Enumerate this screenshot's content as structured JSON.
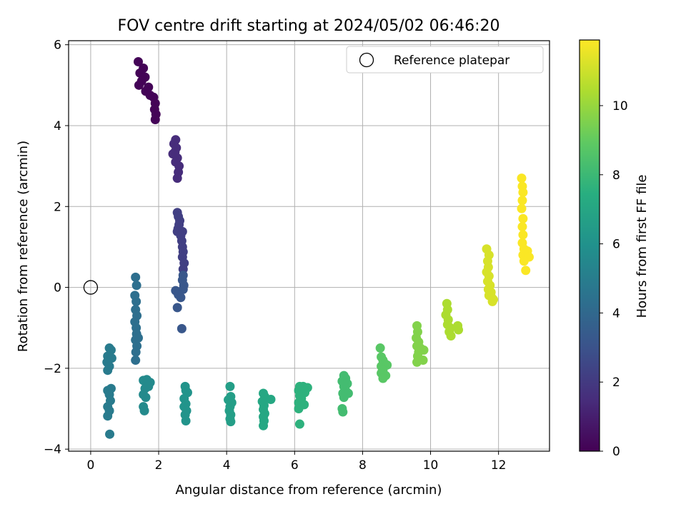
{
  "chart_data": {
    "type": "scatter",
    "title": "FOV centre drift starting at 2024/05/02 06:46:20",
    "xlabel": "Angular distance from reference (arcmin)",
    "ylabel": "Rotation from reference (arcmin)",
    "xlim": [
      -0.65,
      13.5
    ],
    "ylim": [
      -4.05,
      6.1
    ],
    "xticks": [
      0,
      2,
      4,
      6,
      8,
      10,
      12
    ],
    "yticks": [
      -4,
      -2,
      0,
      2,
      4,
      6
    ],
    "grid": true,
    "legend": {
      "position": "top-right",
      "entries": [
        "Reference platepar"
      ]
    },
    "reference_point": {
      "x": 0,
      "y": 0,
      "label": "Reference platepar"
    },
    "colorbar": {
      "label": "Hours from first FF file",
      "range": [
        0,
        11.9
      ],
      "ticks": [
        0,
        2,
        4,
        6,
        8,
        10
      ],
      "colormap": "viridis"
    },
    "series": [
      {
        "hours": 0.1,
        "points": [
          [
            1.4,
            5.58
          ],
          [
            1.55,
            5.42
          ],
          [
            1.45,
            5.3
          ],
          [
            1.6,
            5.2
          ],
          [
            1.5,
            5.1
          ],
          [
            1.42,
            5.0
          ],
          [
            1.7,
            4.95
          ],
          [
            1.62,
            4.85
          ],
          [
            1.75,
            4.75
          ],
          [
            1.85,
            4.7
          ],
          [
            1.9,
            4.55
          ],
          [
            1.88,
            4.4
          ],
          [
            1.92,
            4.28
          ],
          [
            1.9,
            4.15
          ]
        ]
      },
      {
        "hours": 1.5,
        "points": [
          [
            2.5,
            3.65
          ],
          [
            2.45,
            3.55
          ],
          [
            2.52,
            3.45
          ],
          [
            2.48,
            3.35
          ],
          [
            2.42,
            3.3
          ],
          [
            2.55,
            3.2
          ],
          [
            2.5,
            3.1
          ],
          [
            2.6,
            3.0
          ],
          [
            2.58,
            2.85
          ],
          [
            2.55,
            2.7
          ]
        ]
      },
      {
        "hours": 2.2,
        "points": [
          [
            2.55,
            1.85
          ],
          [
            2.58,
            1.75
          ],
          [
            2.62,
            1.65
          ],
          [
            2.6,
            1.55
          ],
          [
            2.57,
            1.45
          ],
          [
            2.55,
            1.38
          ],
          [
            2.7,
            1.38
          ],
          [
            2.65,
            1.28
          ],
          [
            2.68,
            1.15
          ],
          [
            2.7,
            1.0
          ],
          [
            2.72,
            0.88
          ],
          [
            2.7,
            0.75
          ],
          [
            2.75,
            0.6
          ],
          [
            2.72,
            0.45
          ]
        ]
      },
      {
        "hours": 3.2,
        "points": [
          [
            2.72,
            0.3
          ],
          [
            2.7,
            0.18
          ],
          [
            2.74,
            0.05
          ],
          [
            2.72,
            -0.05
          ],
          [
            2.5,
            -0.08
          ],
          [
            2.58,
            -0.18
          ],
          [
            2.65,
            -0.25
          ],
          [
            2.55,
            -0.5
          ],
          [
            2.68,
            -1.02
          ]
        ]
      },
      {
        "hours": 4.3,
        "points": [
          [
            1.32,
            0.25
          ],
          [
            1.35,
            0.05
          ],
          [
            1.3,
            -0.2
          ],
          [
            1.34,
            -0.35
          ],
          [
            1.32,
            -0.55
          ],
          [
            1.36,
            -0.7
          ],
          [
            1.3,
            -0.85
          ],
          [
            1.34,
            -1.0
          ],
          [
            1.35,
            -1.15
          ],
          [
            1.32,
            -1.3
          ],
          [
            1.36,
            -1.45
          ],
          [
            1.33,
            -1.6
          ],
          [
            1.32,
            -1.8
          ],
          [
            1.4,
            -1.25
          ]
        ]
      },
      {
        "hours": 4.9,
        "points": [
          [
            0.55,
            -1.5
          ],
          [
            0.6,
            -1.55
          ],
          [
            0.5,
            -1.7
          ],
          [
            0.62,
            -1.75
          ],
          [
            0.48,
            -1.85
          ],
          [
            0.55,
            -1.95
          ],
          [
            0.5,
            -2.05
          ],
          [
            0.6,
            -2.5
          ],
          [
            0.5,
            -2.55
          ],
          [
            0.55,
            -2.65
          ],
          [
            0.58,
            -2.8
          ],
          [
            0.5,
            -2.95
          ],
          [
            0.55,
            -3.05
          ],
          [
            0.5,
            -3.18
          ],
          [
            0.56,
            -3.63
          ]
        ]
      },
      {
        "hours": 5.6,
        "points": [
          [
            1.55,
            -2.3
          ],
          [
            1.65,
            -2.28
          ],
          [
            1.75,
            -2.35
          ],
          [
            1.7,
            -2.45
          ],
          [
            1.6,
            -2.5
          ],
          [
            1.55,
            -2.65
          ],
          [
            1.62,
            -2.72
          ],
          [
            1.55,
            -2.95
          ],
          [
            1.58,
            -3.05
          ]
        ]
      },
      {
        "hours": 6.1,
        "points": [
          [
            2.78,
            -2.45
          ],
          [
            2.8,
            -2.55
          ],
          [
            2.85,
            -2.6
          ],
          [
            2.75,
            -2.75
          ],
          [
            2.8,
            -2.88
          ],
          [
            2.75,
            -2.95
          ],
          [
            2.82,
            -3.05
          ],
          [
            2.78,
            -3.15
          ],
          [
            2.8,
            -3.3
          ]
        ]
      },
      {
        "hours": 6.6,
        "points": [
          [
            4.1,
            -2.45
          ],
          [
            4.12,
            -2.7
          ],
          [
            4.05,
            -2.78
          ],
          [
            4.15,
            -2.85
          ],
          [
            4.1,
            -2.95
          ],
          [
            4.08,
            -3.05
          ],
          [
            4.12,
            -3.15
          ],
          [
            4.1,
            -3.25
          ],
          [
            4.12,
            -3.32
          ]
        ]
      },
      {
        "hours": 7.1,
        "points": [
          [
            5.08,
            -2.62
          ],
          [
            5.12,
            -2.7
          ],
          [
            5.3,
            -2.77
          ],
          [
            5.05,
            -2.82
          ],
          [
            5.1,
            -2.92
          ],
          [
            5.08,
            -3.02
          ],
          [
            5.12,
            -3.12
          ],
          [
            5.08,
            -3.2
          ],
          [
            5.1,
            -3.3
          ],
          [
            5.08,
            -3.42
          ]
        ]
      },
      {
        "hours": 7.6,
        "points": [
          [
            6.15,
            -2.45
          ],
          [
            6.25,
            -2.45
          ],
          [
            6.38,
            -2.48
          ],
          [
            6.12,
            -2.55
          ],
          [
            6.3,
            -2.6
          ],
          [
            6.15,
            -2.68
          ],
          [
            6.2,
            -2.75
          ],
          [
            6.12,
            -2.85
          ],
          [
            6.28,
            -2.9
          ],
          [
            6.12,
            -3.0
          ],
          [
            6.15,
            -3.38
          ]
        ]
      },
      {
        "hours": 8.2,
        "points": [
          [
            7.45,
            -2.18
          ],
          [
            7.5,
            -2.25
          ],
          [
            7.4,
            -2.32
          ],
          [
            7.55,
            -2.38
          ],
          [
            7.45,
            -2.45
          ],
          [
            7.5,
            -2.55
          ],
          [
            7.42,
            -2.62
          ],
          [
            7.58,
            -2.62
          ],
          [
            7.45,
            -2.72
          ],
          [
            7.4,
            -3.0
          ],
          [
            7.42,
            -3.08
          ]
        ]
      },
      {
        "hours": 8.8,
        "points": [
          [
            8.52,
            -1.5
          ],
          [
            8.55,
            -1.72
          ],
          [
            8.6,
            -1.8
          ],
          [
            8.65,
            -1.88
          ],
          [
            8.55,
            -1.95
          ],
          [
            8.72,
            -1.92
          ],
          [
            8.6,
            -2.05
          ],
          [
            8.55,
            -2.12
          ],
          [
            8.68,
            -2.18
          ],
          [
            8.6,
            -2.25
          ]
        ]
      },
      {
        "hours": 9.6,
        "points": [
          [
            9.6,
            -0.95
          ],
          [
            9.62,
            -1.1
          ],
          [
            9.58,
            -1.25
          ],
          [
            9.65,
            -1.35
          ],
          [
            9.6,
            -1.45
          ],
          [
            9.7,
            -1.5
          ],
          [
            9.65,
            -1.6
          ],
          [
            9.62,
            -1.7
          ],
          [
            9.68,
            -1.78
          ],
          [
            9.6,
            -1.85
          ],
          [
            9.8,
            -1.55
          ],
          [
            9.78,
            -1.8
          ]
        ]
      },
      {
        "hours": 10.4,
        "points": [
          [
            10.48,
            -0.4
          ],
          [
            10.5,
            -0.55
          ],
          [
            10.45,
            -0.68
          ],
          [
            10.52,
            -0.8
          ],
          [
            10.5,
            -0.92
          ],
          [
            10.58,
            -1.0
          ],
          [
            10.55,
            -1.1
          ],
          [
            10.6,
            -1.2
          ],
          [
            10.8,
            -0.95
          ],
          [
            10.82,
            -1.05
          ]
        ]
      },
      {
        "hours": 11.2,
        "points": [
          [
            11.65,
            0.95
          ],
          [
            11.72,
            0.8
          ],
          [
            11.68,
            0.65
          ],
          [
            11.7,
            0.5
          ],
          [
            11.65,
            0.38
          ],
          [
            11.72,
            0.28
          ],
          [
            11.68,
            0.15
          ],
          [
            11.75,
            0.05
          ],
          [
            11.7,
            -0.05
          ],
          [
            11.78,
            -0.12
          ],
          [
            11.72,
            -0.2
          ],
          [
            11.8,
            -0.25
          ],
          [
            11.85,
            -0.3
          ],
          [
            11.82,
            -0.35
          ],
          [
            11.75,
            -0.12
          ]
        ]
      },
      {
        "hours": 11.85,
        "points": [
          [
            12.68,
            2.7
          ],
          [
            12.7,
            2.5
          ],
          [
            12.72,
            2.35
          ],
          [
            12.7,
            2.15
          ],
          [
            12.68,
            1.95
          ],
          [
            12.72,
            1.7
          ],
          [
            12.7,
            1.5
          ],
          [
            12.72,
            1.3
          ],
          [
            12.7,
            1.1
          ],
          [
            12.75,
            0.95
          ],
          [
            12.72,
            0.8
          ],
          [
            12.85,
            0.9
          ],
          [
            12.9,
            0.75
          ],
          [
            12.75,
            0.65
          ],
          [
            12.8,
            0.42
          ]
        ]
      }
    ]
  }
}
